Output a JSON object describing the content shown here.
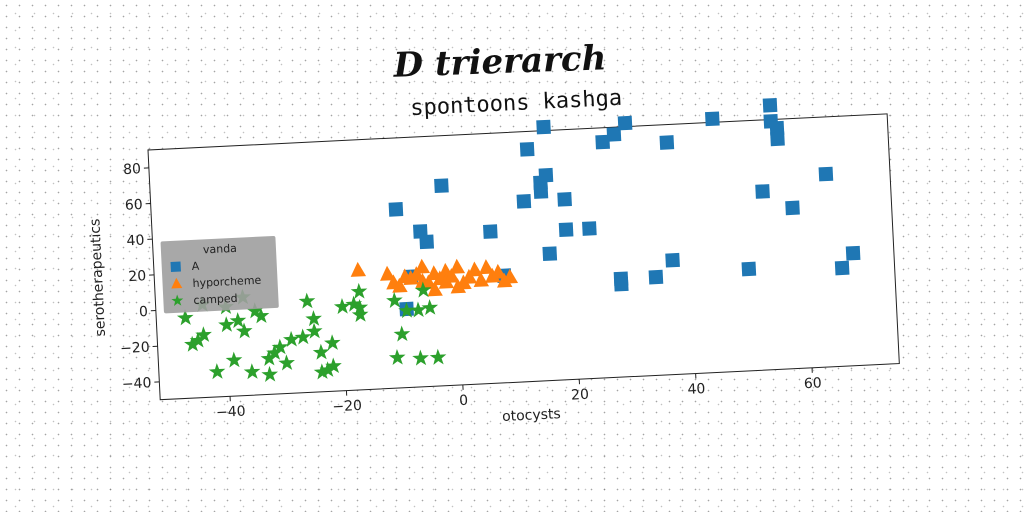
{
  "page": {
    "title": "D trierarch"
  },
  "chart_data": {
    "type": "scatter",
    "title": "spontoons kashga",
    "xlabel": "otocysts",
    "ylabel": "serotherapeutics",
    "xlim": [
      -52,
      75
    ],
    "ylim": [
      -50,
      90
    ],
    "xticks": [
      -40,
      -20,
      0,
      20,
      40,
      60
    ],
    "yticks": [
      -40,
      -20,
      0,
      20,
      40,
      60,
      80
    ],
    "grid": false,
    "legend": {
      "title": "vanda",
      "placement": "left",
      "background": "#9e9e9e"
    },
    "series": [
      {
        "name": "A",
        "marker": "square",
        "color": "#1f77b4",
        "points": [
          [
            -10,
            50
          ],
          [
            -6,
            37
          ],
          [
            -5,
            31
          ],
          [
            -2,
            62
          ],
          [
            6,
            35
          ],
          [
            -8,
            12
          ],
          [
            8,
            10
          ],
          [
            -9,
            -6
          ],
          [
            12,
            51
          ],
          [
            13,
            80
          ],
          [
            15,
            61
          ],
          [
            15,
            56
          ],
          [
            16,
            65
          ],
          [
            16,
            21
          ],
          [
            16,
            92
          ],
          [
            19,
            51
          ],
          [
            19,
            34
          ],
          [
            23,
            34
          ],
          [
            26,
            82
          ],
          [
            28,
            86
          ],
          [
            28,
            5
          ],
          [
            28,
            2
          ],
          [
            30,
            92
          ],
          [
            34,
            5
          ],
          [
            37,
            80
          ],
          [
            37,
            14
          ],
          [
            45,
            92
          ],
          [
            50,
            7
          ],
          [
            53,
            50
          ],
          [
            55,
            98
          ],
          [
            55,
            89
          ],
          [
            56,
            85
          ],
          [
            56,
            79
          ],
          [
            58,
            40
          ],
          [
            64,
            58
          ],
          [
            66,
            5
          ],
          [
            68,
            13
          ]
        ]
      },
      {
        "name": "hyporcheme",
        "marker": "triangle",
        "color": "#ff7f0e",
        "points": [
          [
            -17,
            17
          ],
          [
            -12,
            14
          ],
          [
            -11,
            9
          ],
          [
            -10,
            7
          ],
          [
            -9,
            12
          ],
          [
            -8,
            11
          ],
          [
            -7,
            13
          ],
          [
            -6,
            17
          ],
          [
            -6,
            9
          ],
          [
            -5,
            8
          ],
          [
            -4,
            13
          ],
          [
            -3,
            10
          ],
          [
            -2,
            14
          ],
          [
            -2,
            8
          ],
          [
            -1,
            11
          ],
          [
            0,
            16
          ],
          [
            1,
            7
          ],
          [
            2,
            10
          ],
          [
            3,
            14
          ],
          [
            4,
            8
          ],
          [
            5,
            15
          ],
          [
            6,
            10
          ],
          [
            7,
            12
          ],
          [
            8,
            7
          ],
          [
            9,
            9
          ],
          [
            -4,
            4
          ],
          [
            0,
            5
          ]
        ]
      },
      {
        "name": "camped",
        "marker": "star",
        "color": "#2ca02c",
        "points": [
          [
            -47,
            -5
          ],
          [
            -46,
            -20
          ],
          [
            -45,
            -18
          ],
          [
            -44,
            2
          ],
          [
            -44,
            -15
          ],
          [
            -42,
            -36
          ],
          [
            -40,
            -10
          ],
          [
            -40,
            0
          ],
          [
            -39,
            -30
          ],
          [
            -38,
            -8
          ],
          [
            -37,
            -14
          ],
          [
            -37,
            5
          ],
          [
            -36,
            -37
          ],
          [
            -35,
            -3
          ],
          [
            -34,
            -6
          ],
          [
            -33,
            -30
          ],
          [
            -33,
            -39
          ],
          [
            -32,
            -27
          ],
          [
            -31,
            -24
          ],
          [
            -30,
            -33
          ],
          [
            -29,
            -20
          ],
          [
            -27,
            -19
          ],
          [
            -26,
            1
          ],
          [
            -25,
            -9
          ],
          [
            -25,
            -16
          ],
          [
            -24,
            -28
          ],
          [
            -24,
            -39
          ],
          [
            -23,
            -38
          ],
          [
            -22,
            -23
          ],
          [
            -22,
            -36
          ],
          [
            -20,
            -3
          ],
          [
            -18,
            -2
          ],
          [
            -17,
            -8
          ],
          [
            -17,
            -4
          ],
          [
            -17,
            5
          ],
          [
            -11,
            -33
          ],
          [
            -11,
            -1
          ],
          [
            -10,
            -20
          ],
          [
            -9,
            -7
          ],
          [
            -7,
            -34
          ],
          [
            -7,
            -7
          ],
          [
            -6,
            4
          ],
          [
            -5,
            -6
          ],
          [
            -4,
            -34
          ]
        ]
      }
    ]
  }
}
